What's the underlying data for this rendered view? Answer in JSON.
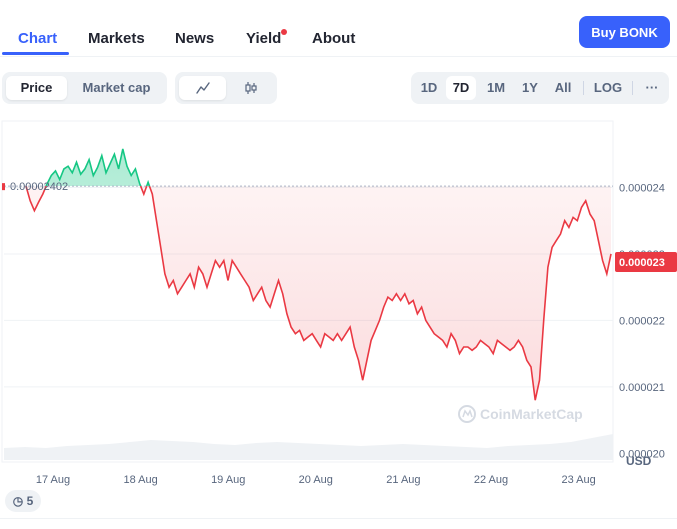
{
  "nav": {
    "tabs": [
      {
        "label": "Chart"
      },
      {
        "label": "Markets"
      },
      {
        "label": "News"
      },
      {
        "label": "Yield"
      },
      {
        "label": "About"
      }
    ],
    "buy_label": "Buy BONK"
  },
  "toolbar": {
    "price_label": "Price",
    "market_cap_label": "Market cap",
    "timeframes": [
      "1D",
      "7D",
      "1M",
      "1Y",
      "All"
    ],
    "log_label": "LOG",
    "more_label": "···"
  },
  "colors": {
    "accent": "#3861fb",
    "up": "#16c784",
    "down": "#ea3943"
  },
  "history": {
    "count": "5"
  },
  "chart_data": {
    "type": "line",
    "y_ticks": [
      "0.000024",
      "0.000023",
      "0.000022",
      "0.000021",
      "0.000020"
    ],
    "y_tick_values": [
      2.4e-05,
      2.3e-05,
      2.2e-05,
      2.1e-05,
      2e-05
    ],
    "x_ticks": [
      "17 Aug",
      "18 Aug",
      "19 Aug",
      "20 Aug",
      "21 Aug",
      "22 Aug",
      "23 Aug"
    ],
    "ylim": [
      1.99e-05,
      2.5e-05
    ],
    "reference_price": 2.402e-05,
    "reference_label": "0.00002402",
    "current_price_label": "0.000023",
    "currency": "USD",
    "watermark": "CoinMarketCap",
    "grid": true,
    "series": [
      {
        "values": [
          2.402e-05,
          2.38e-05,
          2.365e-05,
          2.378e-05,
          2.39e-05,
          2.405e-05,
          2.418e-05,
          2.425e-05,
          2.412e-05,
          2.428e-05,
          2.432e-05,
          2.422e-05,
          2.438e-05,
          2.42e-05,
          2.428e-05,
          2.442e-05,
          2.418e-05,
          2.43e-05,
          2.448e-05,
          2.422e-05,
          2.436e-05,
          2.45e-05,
          2.428e-05,
          2.458e-05,
          2.432e-05,
          2.418e-05,
          2.428e-05,
          2.406e-05,
          2.39e-05,
          2.408e-05,
          2.39e-05,
          2.35e-05,
          2.31e-05,
          2.27e-05,
          2.25e-05,
          2.26e-05,
          2.24e-05,
          2.25e-05,
          2.26e-05,
          2.27e-05,
          2.25e-05,
          2.28e-05,
          2.27e-05,
          2.25e-05,
          2.27e-05,
          2.29e-05,
          2.28e-05,
          2.29e-05,
          2.26e-05,
          2.29e-05,
          2.28e-05,
          2.27e-05,
          2.26e-05,
          2.25e-05,
          2.23e-05,
          2.24e-05,
          2.25e-05,
          2.23e-05,
          2.22e-05,
          2.24e-05,
          2.26e-05,
          2.24e-05,
          2.21e-05,
          2.19e-05,
          2.18e-05,
          2.185e-05,
          2.17e-05,
          2.175e-05,
          2.18e-05,
          2.17e-05,
          2.16e-05,
          2.18e-05,
          2.175e-05,
          2.17e-05,
          2.18e-05,
          2.17e-05,
          2.18e-05,
          2.19e-05,
          2.16e-05,
          2.14e-05,
          2.11e-05,
          2.14e-05,
          2.17e-05,
          2.185e-05,
          2.2e-05,
          2.22e-05,
          2.235e-05,
          2.23e-05,
          2.24e-05,
          2.23e-05,
          2.24e-05,
          2.225e-05,
          2.23e-05,
          2.21e-05,
          2.22e-05,
          2.2e-05,
          2.19e-05,
          2.18e-05,
          2.175e-05,
          2.17e-05,
          2.16e-05,
          2.18e-05,
          2.17e-05,
          2.15e-05,
          2.16e-05,
          2.16e-05,
          2.155e-05,
          2.16e-05,
          2.17e-05,
          2.165e-05,
          2.16e-05,
          2.15e-05,
          2.17e-05,
          2.165e-05,
          2.16e-05,
          2.155e-05,
          2.16e-05,
          2.17e-05,
          2.16e-05,
          2.14e-05,
          2.13e-05,
          2.08e-05,
          2.11e-05,
          2.2e-05,
          2.28e-05,
          2.31e-05,
          2.32e-05,
          2.33e-05,
          2.35e-05,
          2.34e-05,
          2.355e-05,
          2.35e-05,
          2.37e-05,
          2.38e-05,
          2.36e-05,
          2.35e-05,
          2.32e-05,
          2.29e-05,
          2.27e-05,
          2.3e-05
        ]
      }
    ]
  }
}
